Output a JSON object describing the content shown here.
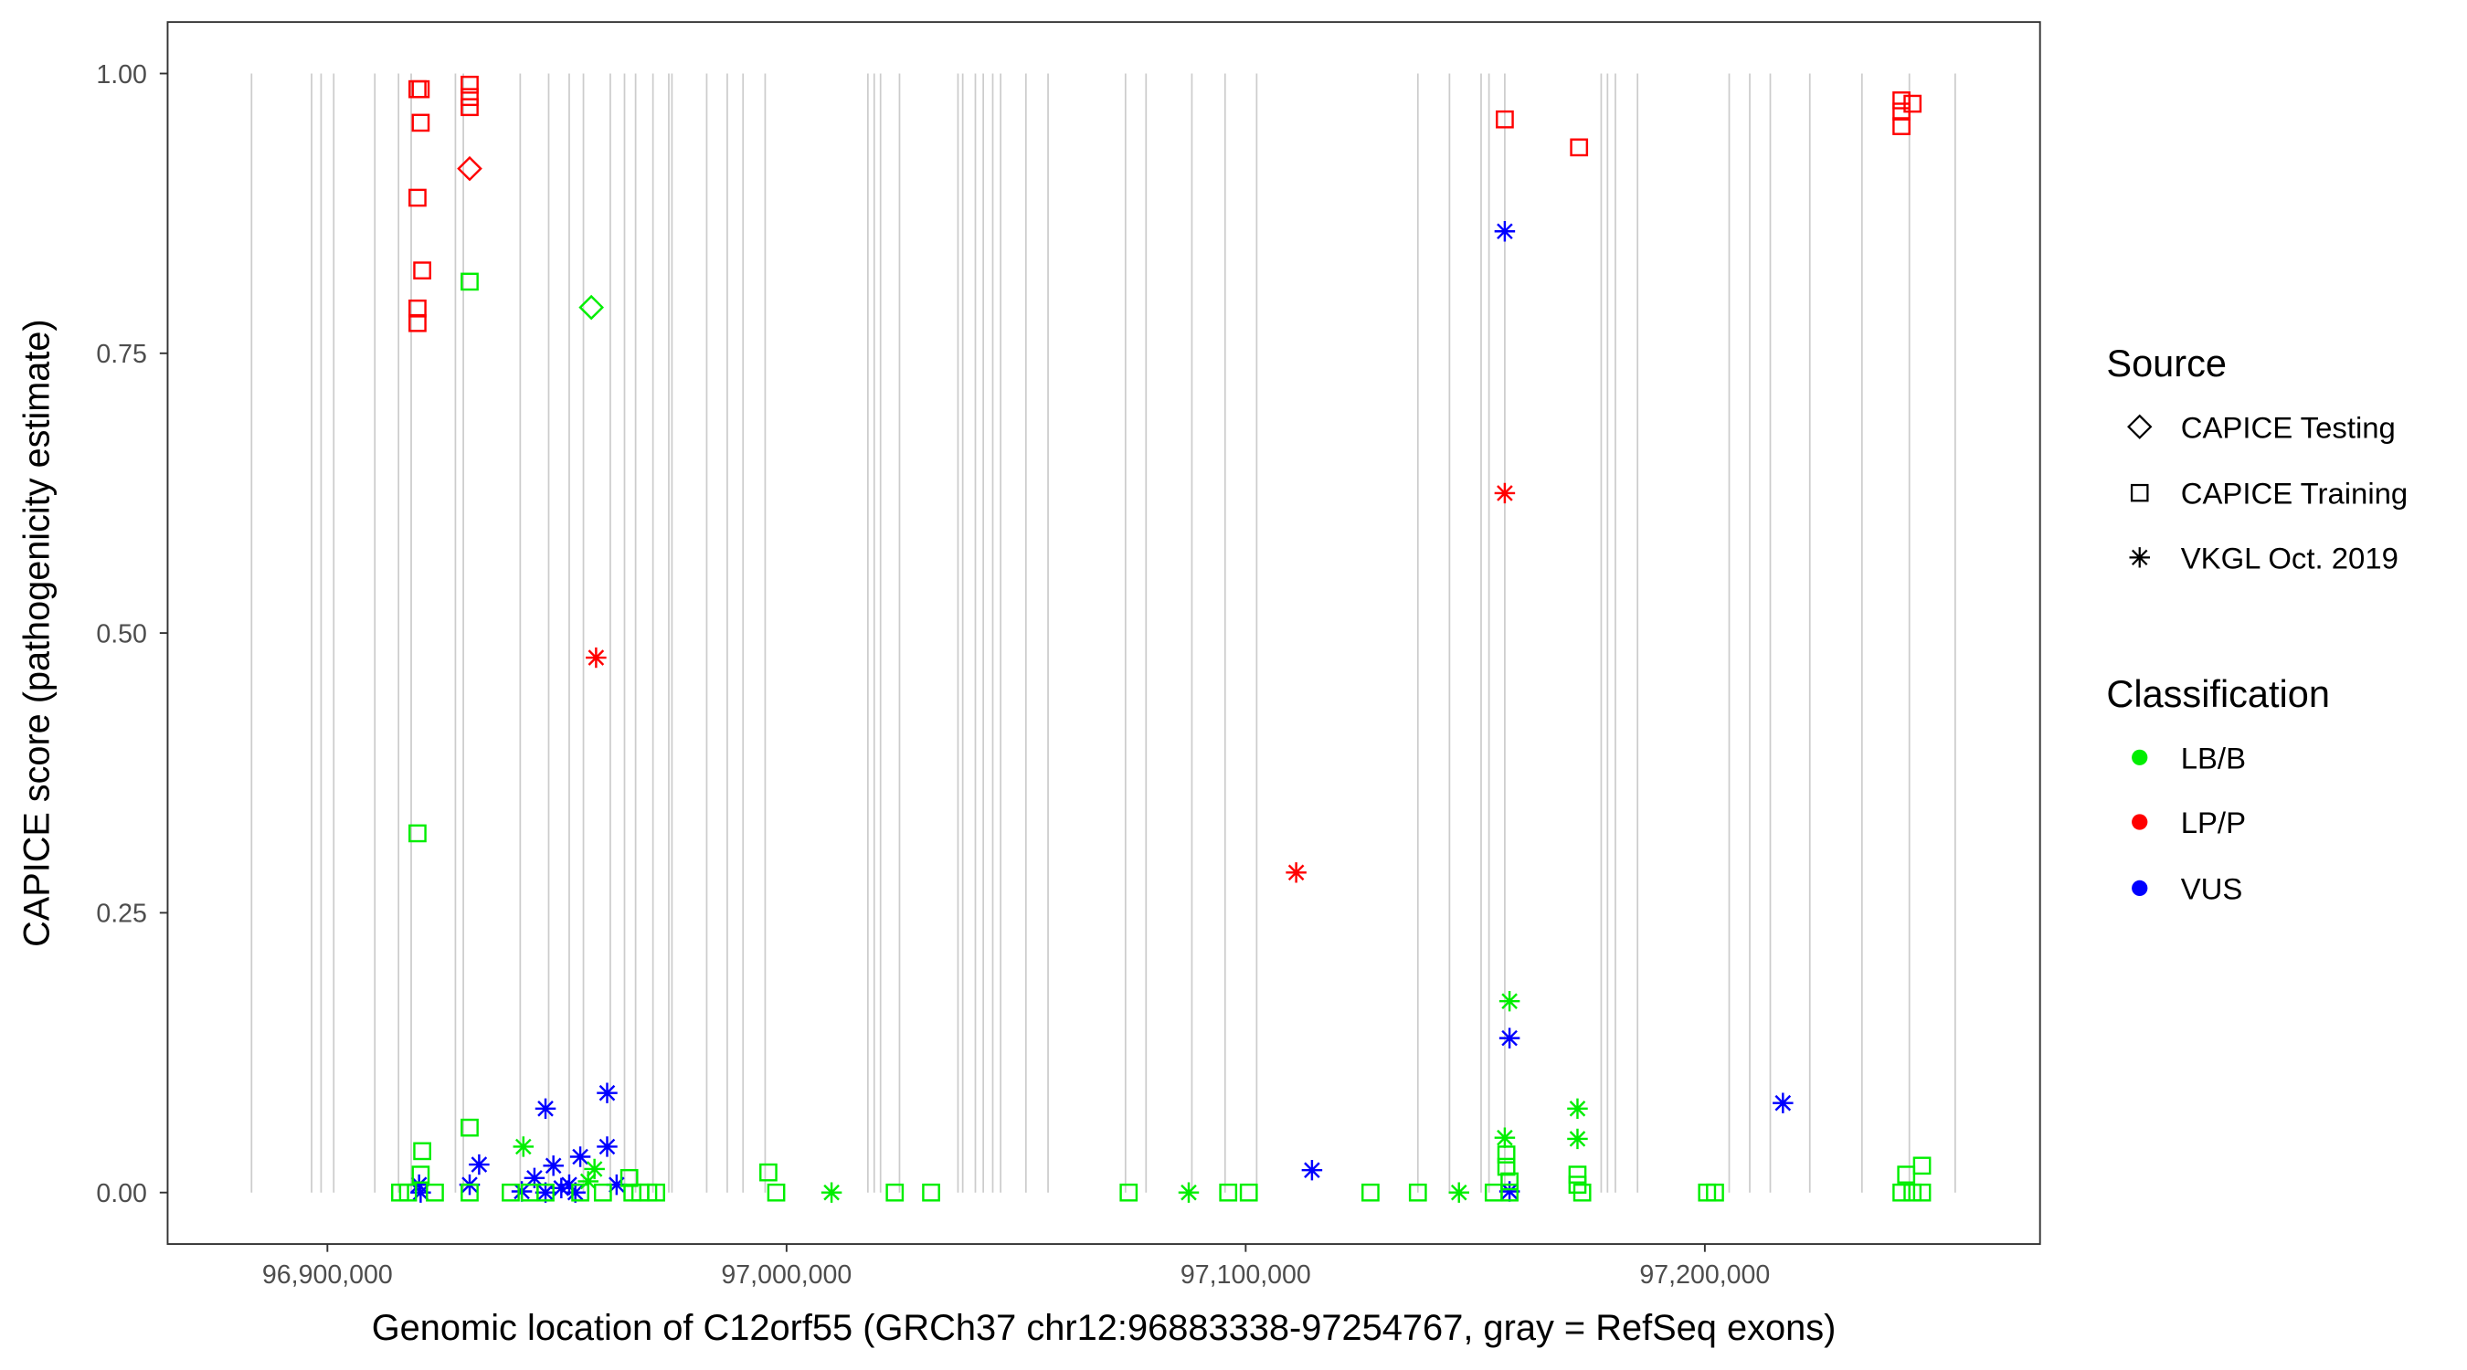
{
  "chart_data": {
    "type": "scatter",
    "title": "",
    "xlabel": "Genomic location of C12orf55 (GRCh37 chr12:96883338-97254767, gray = RefSeq exons)",
    "ylabel": "CAPICE score (pathogenicity estimate)",
    "xlim": [
      96865200,
      97273000
    ],
    "ylim": [
      -0.046,
      1.046
    ],
    "x_ticks": [
      96900000,
      97000000,
      97100000,
      97200000
    ],
    "x_tick_labels": [
      "96,900,000",
      "97,000,000",
      "97,100,000",
      "97,200,000"
    ],
    "y_ticks": [
      0,
      0.25,
      0.5,
      0.75,
      1.0
    ],
    "y_tick_labels": [
      "0.00",
      "0.25",
      "0.50",
      "0.75",
      "1.00"
    ],
    "grid": false,
    "exon_positions": [
      96883478,
      96896558,
      96898623,
      96901377,
      96910326,
      96915489,
      96918243,
      96927880,
      96929601,
      96941992,
      96948188,
      96952663,
      96955760,
      96961612,
      96964710,
      96967119,
      96970905,
      96974347,
      96975036,
      96982608,
      96987083,
      96990525,
      96995343,
      97017716,
      97019093,
      97020470,
      97024600,
      97037336,
      97038368,
      97041122,
      97042843,
      97044908,
      97046629,
      97052136,
      97056955,
      97073821,
      97078296,
      97088277,
      97095506,
      97102390,
      97137498,
      97144382,
      97151266,
      97152987,
      97156429,
      97177425,
      97178802,
      97180523,
      97185342,
      97205305,
      97209780,
      97214255,
      97222860,
      97234218,
      97244544,
      97254526
    ],
    "legend": {
      "placement": "right",
      "source_title": "Source",
      "source_entries": [
        {
          "key": "Testing",
          "label": "CAPICE Testing",
          "shape": "diamond"
        },
        {
          "key": "Training",
          "label": "CAPICE Training",
          "shape": "square"
        },
        {
          "key": "VKGL",
          "label": "VKGL Oct. 2019",
          "shape": "asterisk"
        }
      ],
      "class_title": "Classification",
      "class_entries": [
        {
          "key": "LB/B",
          "label": "LB/B",
          "color": "#00ee00"
        },
        {
          "key": "LP/P",
          "label": "LP/P",
          "color": "#ff0000"
        },
        {
          "key": "VUS",
          "label": "VUS",
          "color": "#0000ff"
        }
      ]
    },
    "points": [
      [
        96919619,
        0.986,
        "Training",
        "LP/P"
      ],
      [
        96920308,
        0.986,
        "Training",
        "LP/P"
      ],
      [
        96920308,
        0.956,
        "Training",
        "LP/P"
      ],
      [
        96919619,
        0.889,
        "Training",
        "LP/P"
      ],
      [
        96920652,
        0.824,
        "Training",
        "LP/P"
      ],
      [
        96919619,
        0.79,
        "Training",
        "LP/P"
      ],
      [
        96919619,
        0.777,
        "Training",
        "LP/P"
      ],
      [
        96930978,
        0.99,
        "Training",
        "LP/P"
      ],
      [
        96930978,
        0.979,
        "Training",
        "LP/P"
      ],
      [
        96930978,
        0.97,
        "Training",
        "LP/P"
      ],
      [
        97156429,
        0.959,
        "Training",
        "LP/P"
      ],
      [
        97172606,
        0.934,
        "Training",
        "LP/P"
      ],
      [
        97242823,
        0.976,
        "Training",
        "LP/P"
      ],
      [
        97242823,
        0.966,
        "Training",
        "LP/P"
      ],
      [
        97242823,
        0.953,
        "Training",
        "LP/P"
      ],
      [
        97245233,
        0.973,
        "Training",
        "LP/P"
      ],
      [
        96930978,
        0.915,
        "Testing",
        "LP/P"
      ],
      [
        96957481,
        0.791,
        "Testing",
        "LB/B"
      ],
      [
        96958514,
        0.478,
        "VKGL",
        "LP/P"
      ],
      [
        97110995,
        0.286,
        "VKGL",
        "LP/P"
      ],
      [
        97156429,
        0.625,
        "VKGL",
        "LP/P"
      ],
      [
        97156429,
        0.859,
        "VKGL",
        "VUS"
      ],
      [
        97157462,
        0.138,
        "VKGL",
        "VUS"
      ],
      [
        97114437,
        0.02,
        "VKGL",
        "VUS"
      ],
      [
        97217008,
        0.08,
        "VKGL",
        "VUS"
      ],
      [
        96947500,
        0.075,
        "VKGL",
        "VUS"
      ],
      [
        96960923,
        0.089,
        "VKGL",
        "VUS"
      ],
      [
        96933043,
        0.025,
        "VKGL",
        "VUS"
      ],
      [
        96960923,
        0.041,
        "VKGL",
        "VUS"
      ],
      [
        96949221,
        0.024,
        "VKGL",
        "VUS"
      ],
      [
        96945090,
        0.013,
        "VKGL",
        "VUS"
      ],
      [
        96955072,
        0.032,
        "VKGL",
        "VUS"
      ],
      [
        96919964,
        0.007,
        "VKGL",
        "VUS"
      ],
      [
        96930978,
        0.007,
        "VKGL",
        "VUS"
      ],
      [
        96962989,
        0.007,
        "VKGL",
        "VUS"
      ],
      [
        96952663,
        0.007,
        "VKGL",
        "VUS"
      ],
      [
        96950942,
        0.004,
        "VKGL",
        "VUS"
      ],
      [
        96942337,
        0.001,
        "VKGL",
        "VUS"
      ],
      [
        97157462,
        0.001,
        "VKGL",
        "VUS"
      ],
      [
        96920308,
        0.0,
        "VKGL",
        "VUS"
      ],
      [
        96947500,
        0.0,
        "VKGL",
        "VUS"
      ],
      [
        96954000,
        0.0,
        "VKGL",
        "VUS"
      ],
      [
        96942681,
        0.041,
        "VKGL",
        "LB/B"
      ],
      [
        97157462,
        0.171,
        "VKGL",
        "LB/B"
      ],
      [
        97156429,
        0.049,
        "VKGL",
        "LB/B"
      ],
      [
        97172262,
        0.075,
        "VKGL",
        "LB/B"
      ],
      [
        97172262,
        0.048,
        "VKGL",
        "LB/B"
      ],
      [
        97009800,
        0.0,
        "VKGL",
        "LB/B"
      ],
      [
        97087589,
        0.0,
        "VKGL",
        "LB/B"
      ],
      [
        97146447,
        0.0,
        "VKGL",
        "LB/B"
      ],
      [
        96958170,
        0.021,
        "VKGL",
        "LB/B"
      ],
      [
        96956793,
        0.01,
        "VKGL",
        "LB/B"
      ],
      [
        96919619,
        0.321,
        "Training",
        "LB/B"
      ],
      [
        96930978,
        0.814,
        "Training",
        "LB/B"
      ],
      [
        96930978,
        0.058,
        "Training",
        "LB/B"
      ],
      [
        96920652,
        0.037,
        "Training",
        "LB/B"
      ],
      [
        96920308,
        0.016,
        "Training",
        "LB/B"
      ],
      [
        96996032,
        0.018,
        "Training",
        "LB/B"
      ],
      [
        96997753,
        0.0,
        "Training",
        "LB/B"
      ],
      [
        97023568,
        0.0,
        "Training",
        "LB/B"
      ],
      [
        97031484,
        0.0,
        "Training",
        "LB/B"
      ],
      [
        97074509,
        0.0,
        "Training",
        "LB/B"
      ],
      [
        97096194,
        0.0,
        "Training",
        "LB/B"
      ],
      [
        97100669,
        0.0,
        "Training",
        "LB/B"
      ],
      [
        97127172,
        0.0,
        "Training",
        "LB/B"
      ],
      [
        97137498,
        0.0,
        "Training",
        "LB/B"
      ],
      [
        97154020,
        0.0,
        "Training",
        "LB/B"
      ],
      [
        97156773,
        0.034,
        "Training",
        "LB/B"
      ],
      [
        97156773,
        0.023,
        "Training",
        "LB/B"
      ],
      [
        97157462,
        0.0,
        "Training",
        "LB/B"
      ],
      [
        97172262,
        0.016,
        "Training",
        "LB/B"
      ],
      [
        97172262,
        0.007,
        "Training",
        "LB/B"
      ],
      [
        97173295,
        0.0,
        "Training",
        "LB/B"
      ],
      [
        97200487,
        0.0,
        "Training",
        "LB/B"
      ],
      [
        97202208,
        0.0,
        "Training",
        "LB/B"
      ],
      [
        97243856,
        0.016,
        "Training",
        "LB/B"
      ],
      [
        97247298,
        0.024,
        "Training",
        "LB/B"
      ],
      [
        97242823,
        0.0,
        "Training",
        "LB/B"
      ],
      [
        97245233,
        0.0,
        "Training",
        "LB/B"
      ],
      [
        97247298,
        0.0,
        "Training",
        "LB/B"
      ],
      [
        96915833,
        0.0,
        "Training",
        "LB/B"
      ],
      [
        96917554,
        0.0,
        "Training",
        "LB/B"
      ],
      [
        96923406,
        0.0,
        "Training",
        "LB/B"
      ],
      [
        96930978,
        0.0,
        "Training",
        "LB/B"
      ],
      [
        96939927,
        0.0,
        "Training",
        "LB/B"
      ],
      [
        96944058,
        0.0,
        "Training",
        "LB/B"
      ],
      [
        96947500,
        0.0,
        "Training",
        "LB/B"
      ],
      [
        96966431,
        0.0,
        "Training",
        "LB/B"
      ],
      [
        96968152,
        0.0,
        "Training",
        "LB/B"
      ],
      [
        96969873,
        0.0,
        "Training",
        "LB/B"
      ],
      [
        96971594,
        0.0,
        "Training",
        "LB/B"
      ],
      [
        96965742,
        0.013,
        "Training",
        "LB/B"
      ],
      [
        97157462,
        0.01,
        "Training",
        "LB/B"
      ],
      [
        96955072,
        0.0,
        "Training",
        "LB/B"
      ],
      [
        96960000,
        0.0,
        "Training",
        "LB/B"
      ]
    ]
  }
}
